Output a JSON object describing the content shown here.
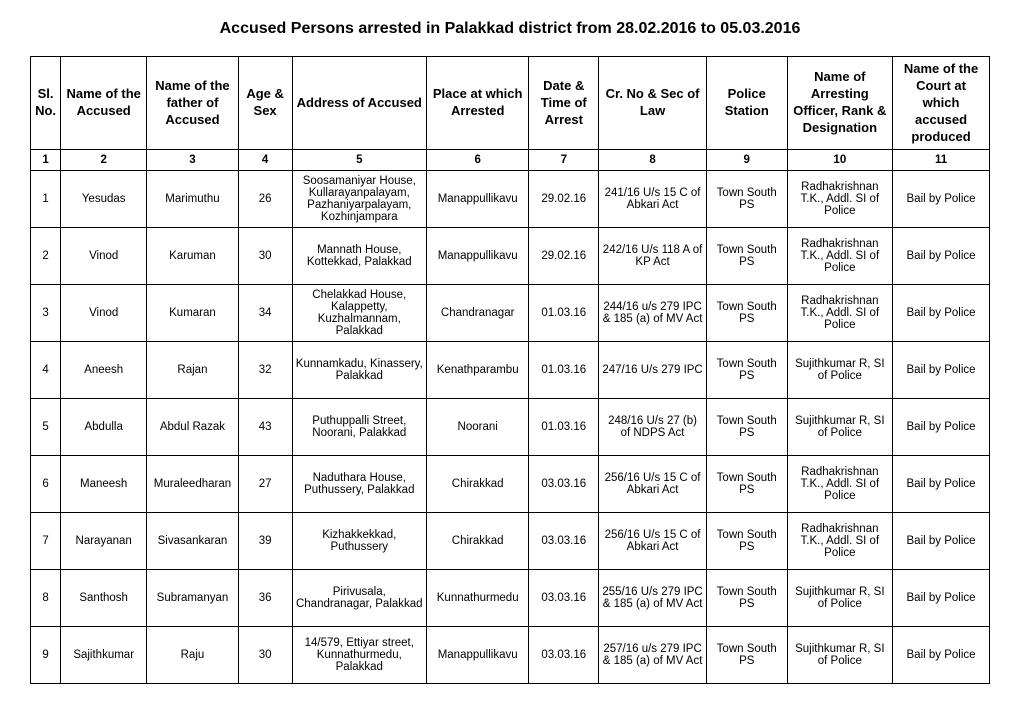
{
  "title": "Accused Persons arrested in  Palakkad  district from  28.02.2016 to 05.03.2016",
  "headers": {
    "c1": "Sl. No.",
    "c2": "Name of the Accused",
    "c3": "Name of the father of Accused",
    "c4": "Age & Sex",
    "c5": "Address of Accused",
    "c6": "Place at which Arrested",
    "c7": "Date & Time of Arrest",
    "c8": "Cr. No & Sec of Law",
    "c9": "Police Station",
    "c10": "Name of Arresting Officer, Rank & Designation",
    "c11": "Name of the Court at which accused produced"
  },
  "colnums": {
    "c1": "1",
    "c2": "2",
    "c3": "3",
    "c4": "4",
    "c5": "5",
    "c6": "6",
    "c7": "7",
    "c8": "8",
    "c9": "9",
    "c10": "10",
    "c11": "11"
  },
  "rows": [
    {
      "sl": "1",
      "name": "Yesudas",
      "father": "Marimuthu",
      "age": "26",
      "addr": "Soosamaniyar House, Kullarayanpalayam, Pazhaniyarpalayam, Kozhinjampara",
      "place": "Manappullikavu",
      "date": "29.02.16",
      "cr": "241/16 U/s 15 C of Abkari Act",
      "ps": "Town South PS",
      "off": "Radhakrishnan T.K., Addl. SI of Police",
      "court": "Bail by Police"
    },
    {
      "sl": "2",
      "name": "Vinod",
      "father": "Karuman",
      "age": "30",
      "addr": "Mannath House, Kottekkad, Palakkad",
      "place": "Manappullikavu",
      "date": "29.02.16",
      "cr": "242/16 U/s 118 A of KP Act",
      "ps": "Town South PS",
      "off": "Radhakrishnan T.K., Addl. SI of Police",
      "court": "Bail by Police"
    },
    {
      "sl": "3",
      "name": "Vinod",
      "father": "Kumaran",
      "age": "34",
      "addr": "Chelakkad House, Kalappetty, Kuzhalmannam, Palakkad",
      "place": "Chandranagar",
      "date": "01.03.16",
      "cr": "244/16 u/s 279 IPC & 185 (a) of MV Act",
      "ps": "Town South PS",
      "off": "Radhakrishnan T.K., Addl. SI of Police",
      "court": "Bail by Police"
    },
    {
      "sl": "4",
      "name": "Aneesh",
      "father": "Rajan",
      "age": "32",
      "addr": "Kunnamkadu, Kinassery, Palakkad",
      "place": "Kenathparambu",
      "date": "01.03.16",
      "cr": "247/16 U/s 279 IPC",
      "ps": "Town South PS",
      "off": "Sujithkumar R, SI of Police",
      "court": "Bail by Police"
    },
    {
      "sl": "5",
      "name": "Abdulla",
      "father": "Abdul Razak",
      "age": "43",
      "addr": "Puthuppalli Street, Noorani, Palakkad",
      "place": "Noorani",
      "date": "01.03.16",
      "cr": "248/16 U/s 27 (b) of NDPS Act",
      "ps": "Town South PS",
      "off": "Sujithkumar R, SI of Police",
      "court": "Bail by Police"
    },
    {
      "sl": "6",
      "name": "Maneesh",
      "father": "Muraleedharan",
      "age": "27",
      "addr": "Naduthara House, Puthussery, Palakkad",
      "place": "Chirakkad",
      "date": "03.03.16",
      "cr": "256/16 U/s 15 C of Abkari Act",
      "ps": "Town South PS",
      "off": "Radhakrishnan T.K., Addl. SI of Police",
      "court": "Bail by Police"
    },
    {
      "sl": "7",
      "name": "Narayanan",
      "father": "Sivasankaran",
      "age": "39",
      "addr": "Kizhakkekkad, Puthussery",
      "place": "Chirakkad",
      "date": "03.03.16",
      "cr": "256/16 U/s 15 C of Abkari Act",
      "ps": "Town South PS",
      "off": "Radhakrishnan T.K., Addl. SI of Police",
      "court": "Bail by Police"
    },
    {
      "sl": "8",
      "name": "Santhosh",
      "father": "Subramanyan",
      "age": "36",
      "addr": "Pirivusala, Chandranagar, Palakkad",
      "place": "Kunnathurmedu",
      "date": "03.03.16",
      "cr": "255/16 U/s 279 IPC & 185 (a) of MV Act",
      "ps": "Town South PS",
      "off": "Sujithkumar R, SI of Police",
      "court": "Bail by Police"
    },
    {
      "sl": "9",
      "name": "Sajithkumar",
      "father": "Raju",
      "age": "30",
      "addr": "14/579, Ettiyar street, Kunnathurmedu, Palakkad",
      "place": "Manappullikavu",
      "date": "03.03.16",
      "cr": "257/16 u/s 279 IPC & 185 (a) of MV Act",
      "ps": "Town South PS",
      "off": "Sujithkumar R, SI of Police",
      "court": "Bail by Police"
    }
  ]
}
